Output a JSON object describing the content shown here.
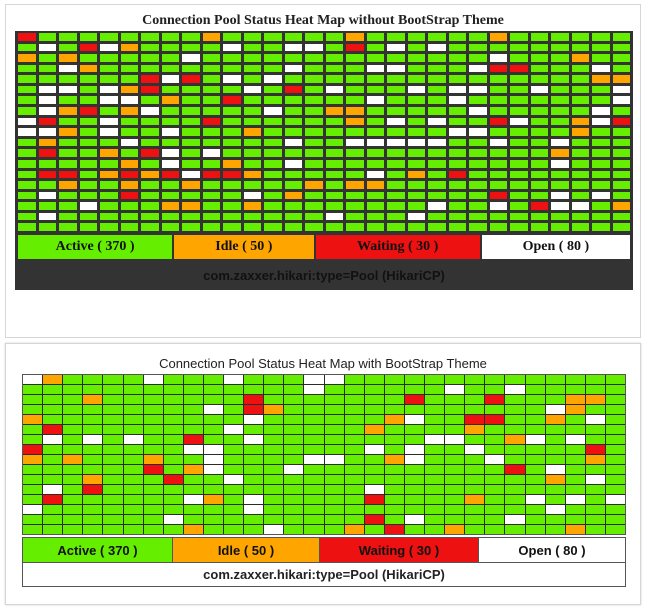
{
  "colors": {
    "active": "#66ee00",
    "idle": "#ffa500",
    "waiting": "#ee1111",
    "open": "#ffffff"
  },
  "panel1": {
    "title": "Connection Pool Status Heat Map without BootStrap Theme",
    "legend": {
      "active": "Active ( 370 )",
      "idle": "Idle ( 50 )",
      "waiting": "Waiting ( 30 )",
      "open": "Open ( 80 )"
    },
    "footer": "com.zaxxer.hikari:type=Pool (HikariCP)",
    "rows": [
      "RAAAAAAAAIAAAAAAIAAAAAAIAAAAAA",
      "AOAROIAAAAOAAOOARAOAOAAAAAAAAA",
      "IAIAAAAAOAAAAAAAAAAAAAAOAAAIAA",
      "AAOIAAAAAAAAAOAAAOOAAAORRAAAOA",
      "AAAAAARORAOAOAAAAAAAAAAAAAAAII",
      "AOOAOIRAAAAOARAOAAAOAOOAAOAAAO",
      "AOAAOOAIAARAAAAAAOAAAOAAAAAAAO",
      "AOIRAIOAAAAAOAAIIAAAAAOAAAAAOA",
      "ORAAOAAAARAAAAAAIAOAOAAROAAIOR",
      "OOIAOAAOAAAIAAAAAAAAAOOAAAAIAA",
      "AIAAAOAAAAAAAOAAOOOOOAAOAAOAAA",
      "ARAAIAROAOAAAAAAAAAAAAAAAAIAAA",
      "AAAAAIAOAAIAAOAAAAAAAAAAAAOAAA",
      "ARRAIRIRORRIAAAAAOAIARAAAAAAAA",
      "AAIAAIAAIAAAAAIAIIAAAAAAAAAAAA",
      "AOAAARAAAAAOAIAAAAAAAAARAAOAOA",
      "AAAOAAAIIAAIAAAAAAAAOAAOAROOAI",
      "AOAAAAAAAAAAAAAOAAAOAAAAAAAAAA",
      "AAAAAAAAAAAAAAAAAAAAAAAAAAAAAA"
    ]
  },
  "panel2": {
    "title": "Connection Pool Status Heat Map with BootStrap Theme",
    "legend": {
      "active": "Active ( 370 )",
      "idle": "Idle ( 50 )",
      "waiting": "Waiting ( 30 )",
      "open": "Open ( 80 )"
    },
    "footer": "com.zaxxer.hikari:type=Pool (HikariCP)",
    "rows": [
      "OIAAAAOAAAOAAAOOAAAAAAAAAAAAAA",
      "AAAAAAAAAAAAAAOAAAAAAOAAOAAAAA",
      "AAAIAAAAAAARAAAAAAARAAARAAAIIA",
      "AAAAAAAAAOARIAAAAAAAAAAAAAOIAA",
      "IAAAAAAAAAAOAAAAAAIOAARRAAIAOA",
      "ARAAAAAAAAOAAAAAAIAAAAIAAAAAAA",
      "AOAOAOAARAAOAAAAAAAAOOAAIOAOAA",
      "RAAAAAAAOOAAAAAAAOAOAAOAAAAARA",
      "IAIAAAIAAOAAAAOOAAIOAAAOAAAAIA",
      "AAAAAARAIOAAAOAAAAAAAAAARAOAAA",
      "AAAIAAARAAOAAAAAAAAAAAAAAAIAOA",
      "AOARAAAAAAAAAAAAAOAAAAAAAAAAAA",
      "ARAAAAAAOIAOAAAAARAAAAIAAOAOAO",
      "OAAAAAAAAAAOAAAAAAAAAAAAAAOAAA",
      "AAAAAAAOAAAAAAAAARAOAAAAOAAAAA",
      "AAAAAAAAIAAAOAAAIARAAIAAAAAIAA"
    ]
  }
}
